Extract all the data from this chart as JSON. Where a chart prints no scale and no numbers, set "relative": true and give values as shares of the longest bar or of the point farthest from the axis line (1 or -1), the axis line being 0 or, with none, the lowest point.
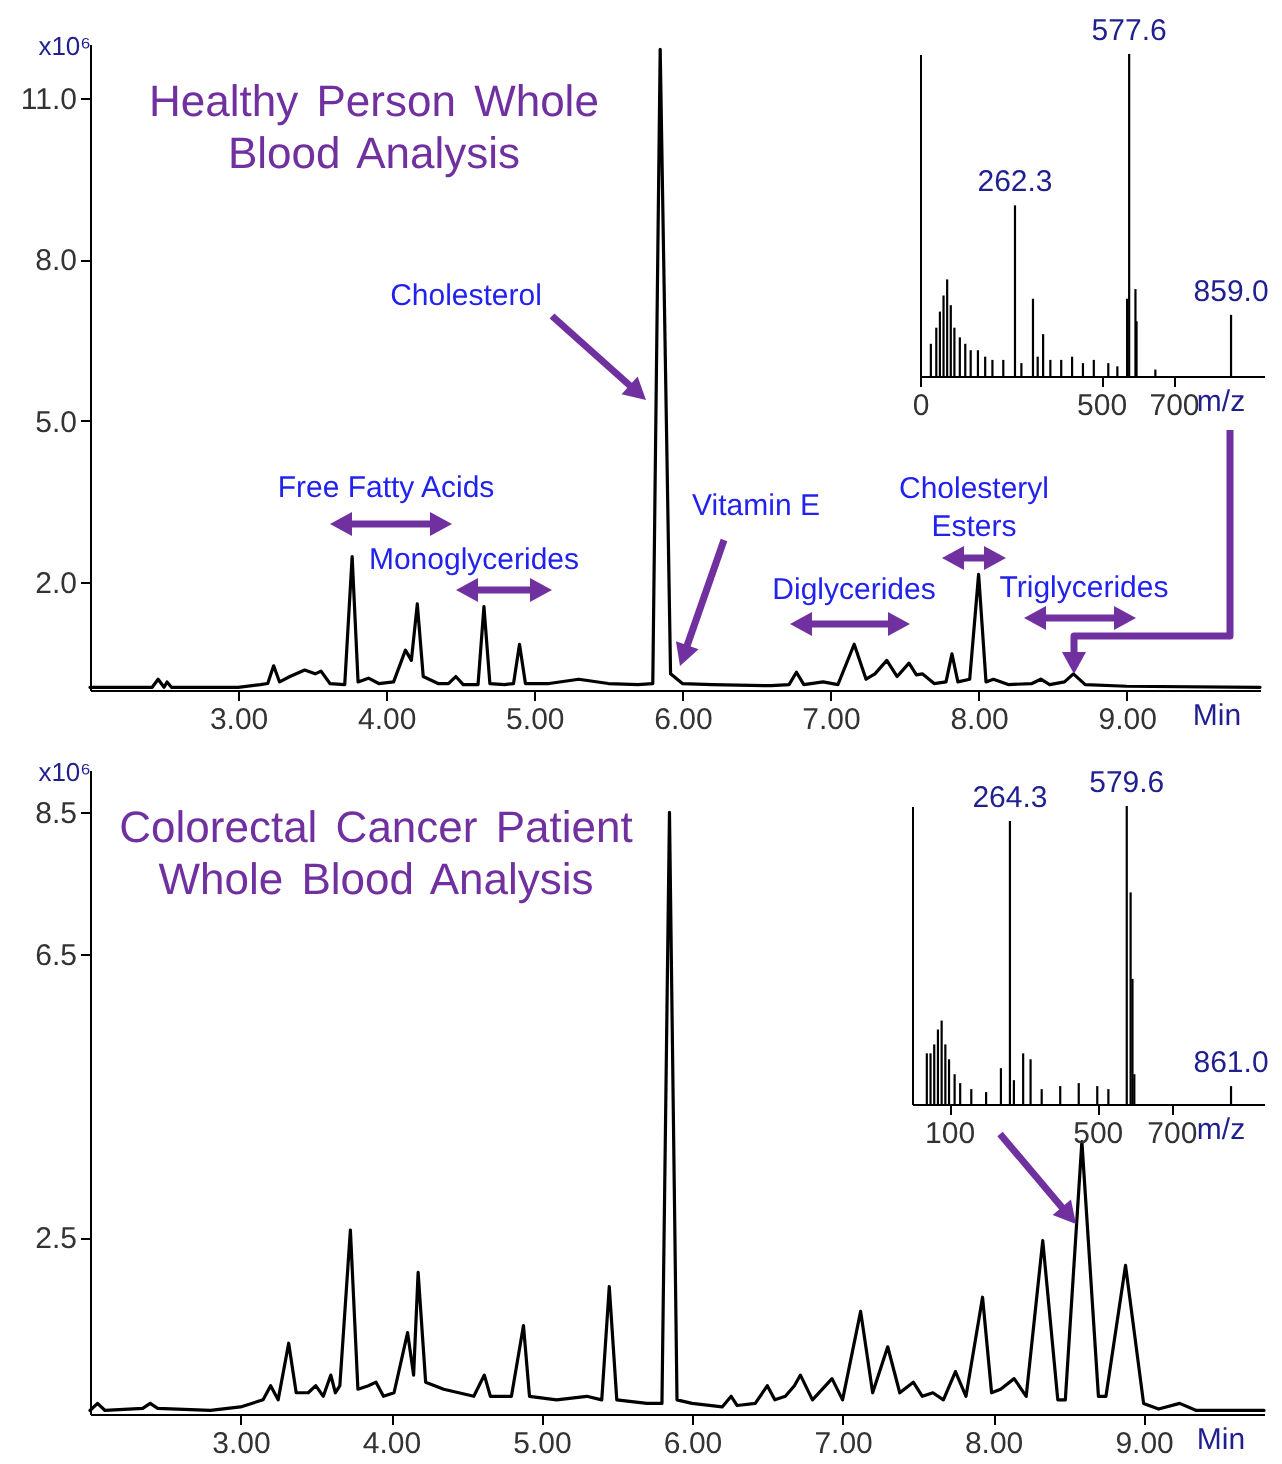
{
  "chart_data": [
    {
      "type": "line",
      "title": "Healthy Person Whole Blood Analysis",
      "xlabel": "Min",
      "ylabel": "x10⁶",
      "xlim": [
        2.0,
        9.9
      ],
      "xticks": [
        {
          "value": 3,
          "label": "3.00"
        },
        {
          "value": 4,
          "label": "4.00"
        },
        {
          "value": 5,
          "label": "5.00"
        },
        {
          "value": 6,
          "label": "6.00"
        },
        {
          "value": 7,
          "label": "7.00"
        },
        {
          "value": 8,
          "label": "8.00"
        },
        {
          "value": 9,
          "label": "9.00"
        }
      ],
      "ylim": [
        0,
        12
      ],
      "yticks": [
        {
          "value": 2,
          "label": "2.0"
        },
        {
          "value": 5,
          "label": "5.0"
        },
        {
          "value": 8,
          "label": "8.0"
        },
        {
          "value": 11,
          "label": "11.0"
        }
      ],
      "series": [
        {
          "color": "#000000",
          "x": [
            2.0,
            2.3,
            2.42,
            2.46,
            2.5,
            2.52,
            2.55,
            3.0,
            3.15,
            3.2,
            3.24,
            3.28,
            3.35,
            3.45,
            3.52,
            3.56,
            3.62,
            3.72,
            3.77,
            3.81,
            3.88,
            3.95,
            4.05,
            4.13,
            4.17,
            4.21,
            4.25,
            4.35,
            4.42,
            4.47,
            4.52,
            4.62,
            4.66,
            4.7,
            4.8,
            4.86,
            4.9,
            4.94,
            5.1,
            5.3,
            5.5,
            5.7,
            5.8,
            5.85,
            5.92,
            6.0,
            6.2,
            6.6,
            6.72,
            6.77,
            6.82,
            6.95,
            7.05,
            7.16,
            7.24,
            7.3,
            7.38,
            7.45,
            7.53,
            7.58,
            7.62,
            7.7,
            7.78,
            7.82,
            7.86,
            7.94,
            8.0,
            8.05,
            8.1,
            8.2,
            8.36,
            8.42,
            8.48,
            8.58,
            8.64,
            8.72,
            9.0,
            9.9
          ],
          "values": [
            0.05,
            0.05,
            0.05,
            0.2,
            0.05,
            0.15,
            0.05,
            0.05,
            0.1,
            0.12,
            0.45,
            0.15,
            0.25,
            0.37,
            0.3,
            0.35,
            0.12,
            0.1,
            2.48,
            0.15,
            0.22,
            0.12,
            0.15,
            0.74,
            0.55,
            1.6,
            0.25,
            0.12,
            0.12,
            0.25,
            0.1,
            0.1,
            1.55,
            0.12,
            0.1,
            0.12,
            0.85,
            0.12,
            0.12,
            0.2,
            0.12,
            0.1,
            0.12,
            11.9,
            0.3,
            0.12,
            0.1,
            0.08,
            0.1,
            0.33,
            0.1,
            0.15,
            0.1,
            0.85,
            0.2,
            0.3,
            0.55,
            0.25,
            0.5,
            0.28,
            0.3,
            0.12,
            0.15,
            0.67,
            0.15,
            0.2,
            2.15,
            0.15,
            0.2,
            0.1,
            0.12,
            0.2,
            0.1,
            0.15,
            0.3,
            0.1,
            0.07,
            0.05
          ]
        }
      ],
      "annotations": [
        "Cholesterol",
        "Free Fatty Acids",
        "Monoglycerides",
        "Vitamin E",
        "Diglycerides",
        "Cholesteryl Esters",
        "Triglycerides"
      ]
    },
    {
      "type": "bar",
      "relative": true,
      "color": "#000000",
      "xlabel": "m/z",
      "xlim": [
        0,
        950
      ],
      "xticks": [
        0,
        500,
        700
      ],
      "x": [
        30,
        45,
        55,
        65,
        75,
        85,
        95,
        110,
        125,
        140,
        160,
        180,
        200,
        230,
        262.3,
        280,
        312,
        325,
        340,
        360,
        390,
        420,
        450,
        480,
        520,
        545,
        572,
        577.6,
        595,
        598,
        650,
        859
      ],
      "values": [
        0.1,
        0.15,
        0.2,
        0.25,
        0.3,
        0.22,
        0.15,
        0.12,
        0.1,
        0.08,
        0.08,
        0.06,
        0.05,
        0.05,
        0.53,
        0.04,
        0.24,
        0.06,
        0.13,
        0.05,
        0.05,
        0.06,
        0.04,
        0.05,
        0.04,
        0.03,
        0.24,
        1,
        0.27,
        0.17,
        0.02,
        0.19
      ],
      "annotations": [
        {
          "text": "262.3",
          "x": 262.3,
          "y": 0.53
        },
        {
          "text": "577.6",
          "x": 577.6,
          "y": 1
        },
        {
          "text": "859.0",
          "x": 859,
          "y": 0.19
        }
      ]
    },
    {
      "type": "line",
      "title": "Colorectal Cancer Patient Whole Blood Analysis",
      "xlabel": "Min",
      "ylabel": "x10⁶",
      "xlim": [
        2.0,
        9.8
      ],
      "xticks": [
        {
          "value": 3,
          "label": "3.00"
        },
        {
          "value": 4,
          "label": "4.00"
        },
        {
          "value": 5,
          "label": "5.00"
        },
        {
          "value": 6,
          "label": "6.00"
        },
        {
          "value": 7,
          "label": "7.00"
        },
        {
          "value": 8,
          "label": "8.00"
        },
        {
          "value": 9,
          "label": "9.00"
        }
      ],
      "ylim": [
        0,
        9.1
      ],
      "yticks": [
        2.5,
        6.5,
        8.5
      ],
      "series": [
        {
          "color": "#000000",
          "x": [
            2.0,
            2.05,
            2.1,
            2.35,
            2.4,
            2.45,
            2.8,
            3.0,
            3.15,
            3.2,
            3.25,
            3.32,
            3.37,
            3.45,
            3.5,
            3.55,
            3.6,
            3.63,
            3.66,
            3.73,
            3.78,
            3.85,
            3.9,
            3.95,
            4.02,
            4.11,
            4.15,
            4.18,
            4.23,
            4.35,
            4.45,
            4.55,
            4.62,
            4.66,
            4.8,
            4.88,
            4.92,
            5.1,
            5.3,
            5.4,
            5.45,
            5.5,
            5.7,
            5.8,
            5.85,
            5.9,
            6.0,
            6.2,
            6.26,
            6.3,
            6.42,
            6.5,
            6.55,
            6.62,
            6.68,
            6.72,
            6.8,
            6.93,
            7.0,
            7.12,
            7.2,
            7.3,
            7.38,
            7.47,
            7.53,
            7.6,
            7.67,
            7.75,
            7.82,
            7.93,
            7.99,
            8.05,
            8.14,
            8.22,
            8.33,
            8.43,
            8.48,
            8.59,
            8.7,
            8.75,
            8.88,
            9.0,
            9.1,
            9.24,
            9.35,
            9.8
          ],
          "values": [
            0.05,
            0.15,
            0.05,
            0.08,
            0.15,
            0.08,
            0.05,
            0.1,
            0.2,
            0.4,
            0.2,
            1.0,
            0.3,
            0.3,
            0.4,
            0.25,
            0.55,
            0.3,
            0.4,
            2.6,
            0.35,
            0.4,
            0.45,
            0.25,
            0.3,
            1.15,
            0.55,
            2.0,
            0.45,
            0.35,
            0.3,
            0.25,
            0.55,
            0.25,
            0.25,
            1.25,
            0.25,
            0.2,
            0.25,
            0.2,
            1.8,
            0.2,
            0.15,
            0.15,
            8.5,
            0.2,
            0.15,
            0.1,
            0.25,
            0.12,
            0.15,
            0.4,
            0.2,
            0.25,
            0.4,
            0.55,
            0.2,
            0.5,
            0.2,
            1.45,
            0.3,
            0.95,
            0.3,
            0.45,
            0.25,
            0.3,
            0.2,
            0.6,
            0.25,
            1.65,
            0.3,
            0.35,
            0.5,
            0.25,
            2.45,
            0.2,
            0.2,
            3.85,
            0.25,
            0.25,
            2.1,
            0.15,
            0.07,
            0.15,
            0.05,
            0.05
          ]
        }
      ]
    },
    {
      "type": "bar",
      "relative": true,
      "color": "#000000",
      "xlabel": "m/z",
      "xlim": [
        0,
        950
      ],
      "xticks": [
        100,
        500,
        700
      ],
      "x": [
        40,
        50,
        60,
        70,
        80,
        90,
        100,
        115,
        130,
        160,
        200,
        240,
        264.3,
        275,
        300,
        320,
        350,
        400,
        450,
        500,
        530,
        579.6,
        590,
        595,
        600,
        861
      ],
      "values": [
        0.17,
        0.17,
        0.2,
        0.25,
        0.28,
        0.2,
        0.15,
        0.1,
        0.07,
        0.05,
        0.04,
        0.12,
        0.95,
        0.08,
        0.17,
        0.15,
        0.05,
        0.06,
        0.07,
        0.06,
        0.05,
        1,
        0.71,
        0.42,
        0.1,
        0.06
      ],
      "annotations": [
        {
          "text": "264.3",
          "x": 264.3,
          "y": 0.95
        },
        {
          "text": "579.6",
          "x": 579.6,
          "y": 1
        },
        {
          "text": "861.0",
          "x": 861,
          "y": 0.06
        }
      ]
    }
  ]
}
